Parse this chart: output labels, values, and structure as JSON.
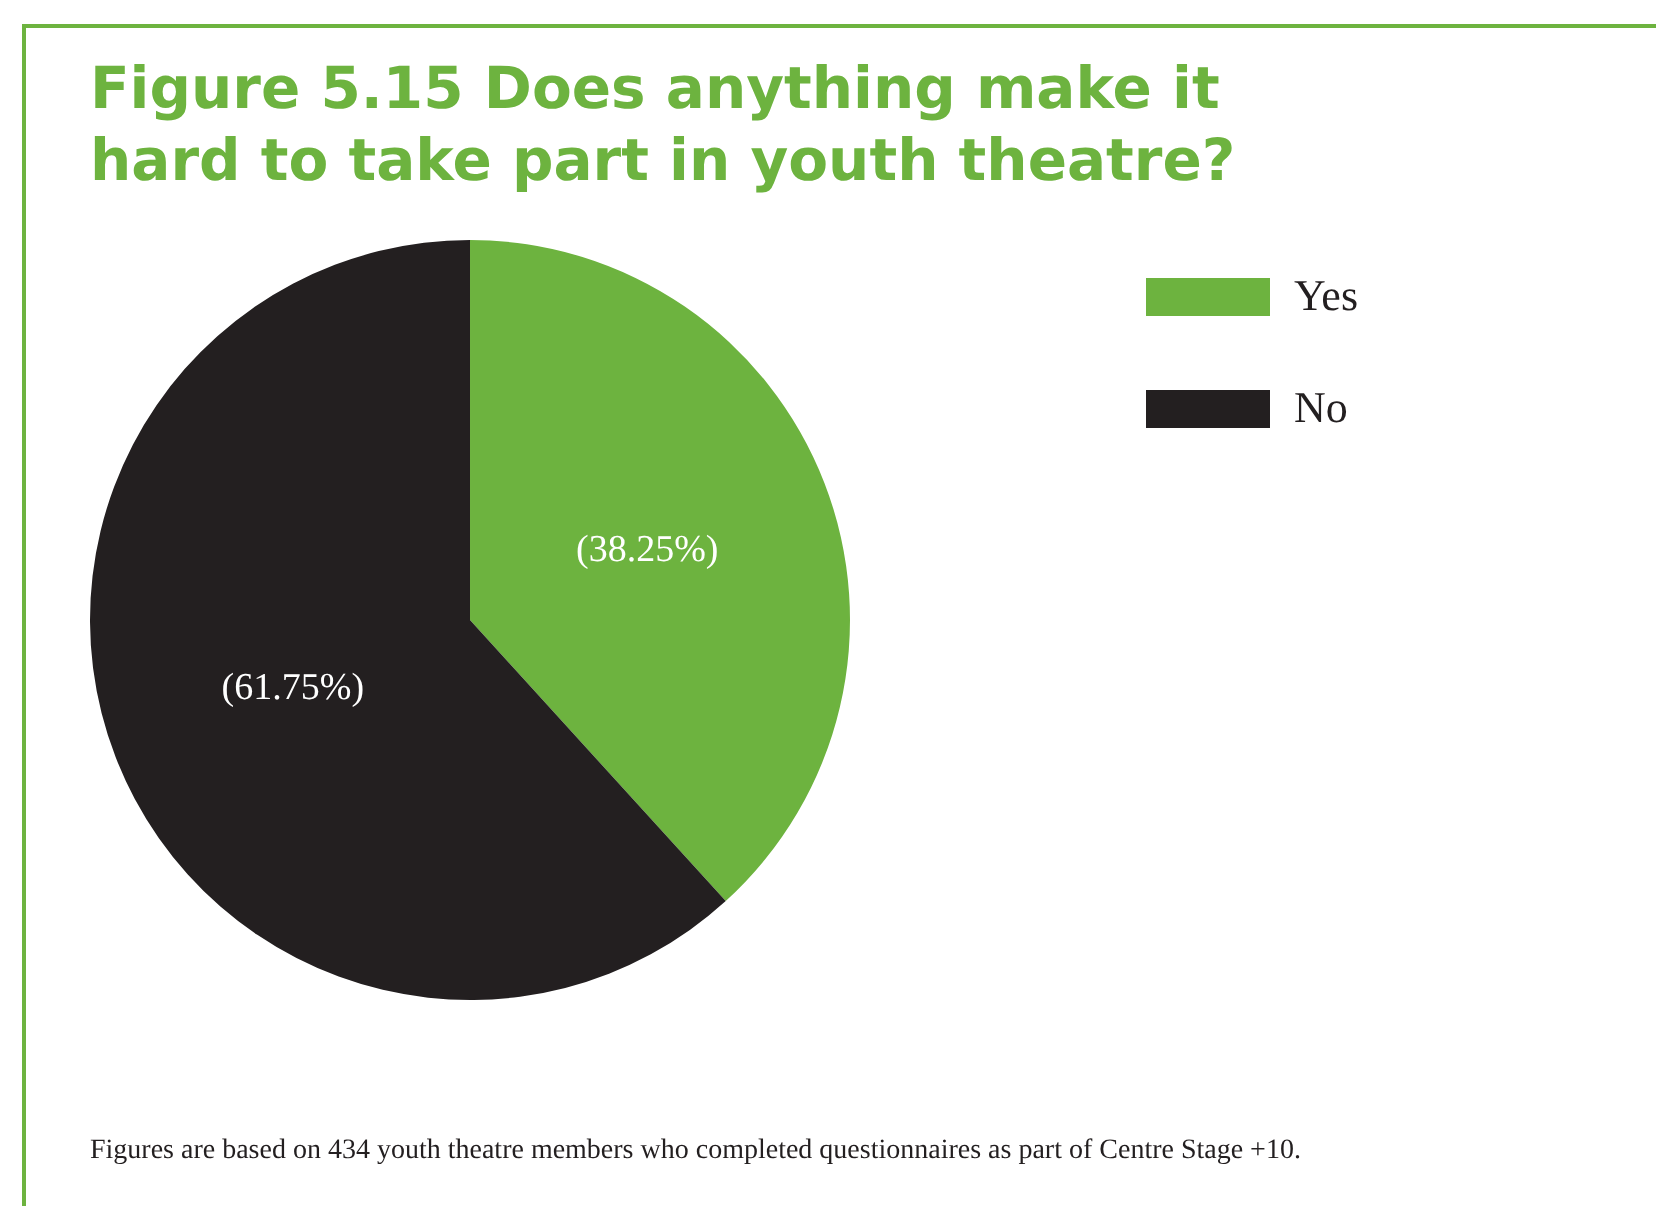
{
  "chart_data": {
    "type": "pie",
    "title": "Figure 5.15  Does anything make it hard to take part in youth theatre?",
    "categories": [
      "Yes",
      "No"
    ],
    "values": [
      38.25,
      61.75
    ],
    "colors": [
      "#6db33f",
      "#231f20"
    ],
    "value_labels": [
      "(38.25%)",
      "(61.75%)"
    ],
    "legend": "top right",
    "annotations": [
      "Figures are based on 434 youth theatre members who completed questionnaires as part of Centre Stage +10."
    ]
  }
}
